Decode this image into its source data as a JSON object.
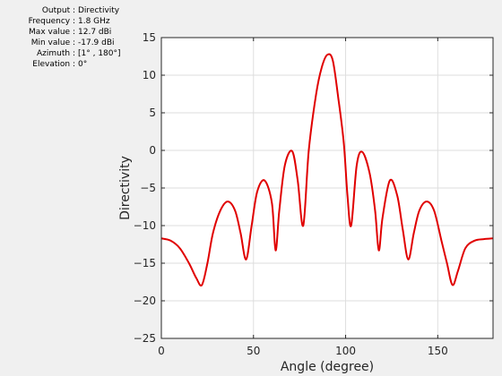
{
  "info": {
    "rows": [
      {
        "label": "Output :",
        "value": "Directivity"
      },
      {
        "label": "Frequency :",
        "value": "1.8 GHz"
      },
      {
        "label": "Max value :",
        "value": "12.7 dBi"
      },
      {
        "label": "Min value :",
        "value": "-17.9 dBi"
      },
      {
        "label": "Azimuth :",
        "value": "[1° , 180°]"
      },
      {
        "label": "Elevation :",
        "value": "0°"
      }
    ]
  },
  "chart_data": {
    "type": "line",
    "xlabel": "Angle (degree)",
    "ylabel": "Directivity",
    "xlim": [
      0,
      180
    ],
    "ylim": [
      -25,
      15
    ],
    "xticks": [
      0,
      50,
      100,
      150
    ],
    "yticks": [
      15,
      10,
      5,
      0,
      -5,
      -10,
      -15,
      -20,
      -25
    ],
    "xtick_labels": [
      "0",
      "50",
      "100",
      "150"
    ],
    "ytick_labels": [
      "15",
      "10",
      "5",
      "0",
      "−5",
      "−10",
      "−15",
      "−20",
      "−25"
    ],
    "grid": true,
    "color": "#e00000",
    "series": [
      {
        "x": [
          0,
          5,
          10,
          15,
          19,
          22,
          25,
          28,
          32,
          36,
          40,
          43,
          46,
          49,
          52,
          56,
          60,
          62,
          64,
          67,
          71,
          74,
          77,
          80,
          84,
          87,
          90,
          93,
          96,
          99,
          101,
          103,
          106,
          109,
          113,
          116,
          118,
          120,
          124,
          128,
          131,
          134,
          137,
          140,
          144,
          148,
          152,
          155,
          158,
          161,
          165,
          170,
          175,
          180
        ],
        "y": [
          -11.7,
          -12,
          -13,
          -15,
          -17,
          -17.9,
          -15,
          -11,
          -8,
          -6.8,
          -8,
          -11,
          -14.5,
          -10,
          -5.5,
          -4,
          -7,
          -13.3,
          -8,
          -2,
          -0.1,
          -4,
          -10,
          0,
          7.5,
          11,
          12.7,
          12,
          7,
          1,
          -6,
          -10,
          -2,
          -0.2,
          -3,
          -8,
          -13.3,
          -9,
          -4,
          -6,
          -10.5,
          -14.5,
          -11,
          -8,
          -6.8,
          -8,
          -12,
          -15,
          -17.9,
          -16,
          -13,
          -12,
          -11.8,
          -11.7
        ]
      }
    ]
  }
}
